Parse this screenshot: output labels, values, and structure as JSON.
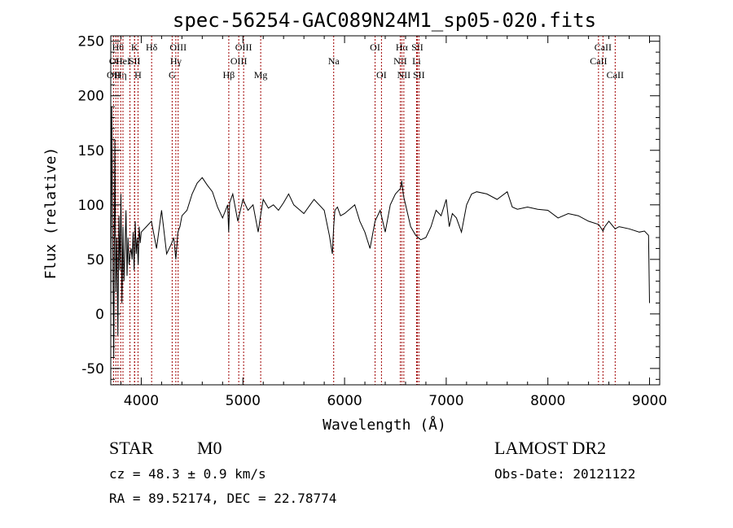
{
  "chart_data": {
    "type": "line",
    "title": "spec-56254-GAC089N24M1_sp05-020.fits",
    "xlabel": "Wavelength (Å)",
    "ylabel": "Flux (relative)",
    "xlim": [
      3700,
      9100
    ],
    "ylim": [
      -65,
      255
    ],
    "x_ticks": [
      4000,
      5000,
      6000,
      7000,
      8000,
      9000
    ],
    "y_ticks": [
      -50,
      0,
      50,
      100,
      150,
      200,
      250
    ],
    "grid": false,
    "line_color": "#000000",
    "marker_color": "#a00000",
    "series": [
      {
        "x": [
          3700,
          3710,
          3720,
          3730,
          3740,
          3750,
          3760,
          3770,
          3780,
          3790,
          3800,
          3810,
          3820,
          3830,
          3840,
          3850,
          3860,
          3870,
          3880,
          3890,
          3900,
          3910,
          3920,
          3930,
          3940,
          3950,
          3960,
          3970,
          3980,
          3990,
          4000,
          4050,
          4100,
          4150,
          4200,
          4250,
          4300,
          4320,
          4340,
          4360,
          4380,
          4400,
          4450,
          4500,
          4550,
          4600,
          4650,
          4700,
          4750,
          4800,
          4850,
          4860,
          4870,
          4900,
          4950,
          5000,
          5050,
          5100,
          5150,
          5170,
          5200,
          5250,
          5300,
          5350,
          5400,
          5450,
          5500,
          5600,
          5700,
          5800,
          5850,
          5880,
          5893,
          5905,
          5930,
          5960,
          6000,
          6100,
          6150,
          6200,
          6250,
          6300,
          6350,
          6400,
          6450,
          6500,
          6550,
          6563,
          6580,
          6600,
          6650,
          6700,
          6750,
          6800,
          6850,
          6900,
          6950,
          7000,
          7030,
          7060,
          7100,
          7150,
          7200,
          7250,
          7300,
          7400,
          7500,
          7600,
          7650,
          7700,
          7800,
          7900,
          8000,
          8100,
          8200,
          8300,
          8400,
          8500,
          8542,
          8560,
          8600,
          8662,
          8700,
          8800,
          8900,
          8950,
          8990,
          9000
        ],
        "values": [
          0,
          190,
          60,
          -40,
          160,
          20,
          70,
          -20,
          90,
          40,
          110,
          10,
          80,
          30,
          60,
          95,
          35,
          70,
          45,
          55,
          60,
          50,
          75,
          40,
          85,
          55,
          70,
          45,
          80,
          65,
          75,
          80,
          85,
          60,
          95,
          55,
          65,
          70,
          50,
          75,
          80,
          90,
          95,
          110,
          120,
          125,
          118,
          112,
          98,
          88,
          100,
          75,
          102,
          110,
          85,
          105,
          95,
          100,
          75,
          88,
          105,
          97,
          100,
          95,
          102,
          110,
          100,
          92,
          105,
          95,
          72,
          55,
          80,
          95,
          98,
          90,
          92,
          100,
          85,
          75,
          60,
          85,
          95,
          75,
          100,
          110,
          115,
          122,
          108,
          100,
          80,
          72,
          68,
          70,
          80,
          95,
          90,
          105,
          80,
          92,
          88,
          75,
          100,
          110,
          112,
          110,
          105,
          112,
          98,
          96,
          98,
          96,
          95,
          88,
          92,
          90,
          85,
          82,
          76,
          80,
          85,
          78,
          80,
          78,
          75,
          76,
          72,
          10
        ]
      }
    ],
    "line_markers": [
      {
        "wl": 3727,
        "label": "OII",
        "row": 3
      },
      {
        "wl": 3750,
        "label": "OII",
        "row": 2
      },
      {
        "wl": 3771,
        "label": "Hθ",
        "row": 1
      },
      {
        "wl": 3798,
        "label": "Hη",
        "row": 3
      },
      {
        "wl": 3820,
        "label": "HeI",
        "row": 2
      },
      {
        "wl": 3889,
        "label": "",
        "row": 0
      },
      {
        "wl": 3934,
        "label": "K",
        "row": 1
      },
      {
        "wl": 3934,
        "label": "SII",
        "row": 2
      },
      {
        "wl": 3968,
        "label": "H",
        "row": 3
      },
      {
        "wl": 4102,
        "label": "Hδ",
        "row": 1
      },
      {
        "wl": 4304,
        "label": "G",
        "row": 3
      },
      {
        "wl": 4340,
        "label": "Hγ",
        "row": 2
      },
      {
        "wl": 4363,
        "label": "OIII",
        "row": 1
      },
      {
        "wl": 4861,
        "label": "Hβ",
        "row": 3
      },
      {
        "wl": 4959,
        "label": "OIII",
        "row": 2
      },
      {
        "wl": 5007,
        "label": "OIII",
        "row": 1
      },
      {
        "wl": 5175,
        "label": "Mg",
        "row": 3
      },
      {
        "wl": 5893,
        "label": "Na",
        "row": 2
      },
      {
        "wl": 6300,
        "label": "OI",
        "row": 1
      },
      {
        "wl": 6363,
        "label": "OI",
        "row": 3
      },
      {
        "wl": 6548,
        "label": "NII",
        "row": 2
      },
      {
        "wl": 6563,
        "label": "Hα",
        "row": 1
      },
      {
        "wl": 6583,
        "label": "NII",
        "row": 3
      },
      {
        "wl": 6708,
        "label": "Li",
        "row": 2
      },
      {
        "wl": 6716,
        "label": "SII",
        "row": 1
      },
      {
        "wl": 6731,
        "label": "SII",
        "row": 3
      },
      {
        "wl": 8498,
        "label": "CaII",
        "row": 2
      },
      {
        "wl": 8542,
        "label": "CaII",
        "row": 1
      },
      {
        "wl": 8662,
        "label": "CaII",
        "row": 3
      }
    ]
  },
  "info": {
    "class_label": "STAR",
    "subclass_label": "M0",
    "cz_line": "cz = 48.3 ± 0.9 km/s",
    "radec_line": "RA =  89.52174, DEC =  22.78774",
    "survey_label": "LAMOST DR2",
    "obsdate_line": "Obs-Date: 20121122"
  }
}
